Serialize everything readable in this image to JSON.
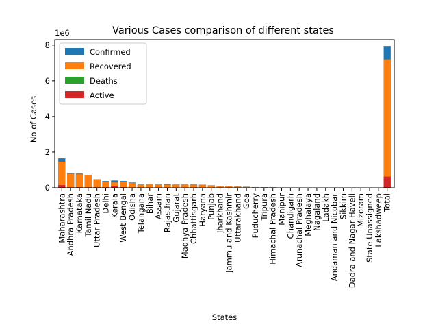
{
  "chart_data": {
    "type": "bar",
    "stacked_overlay": true,
    "title": "Various Cases comparison of different states",
    "xlabel": "States",
    "ylabel": "No of Cases",
    "y_multiplier_label": "1e6",
    "y_multiplier": 1000000,
    "ylim": [
      0,
      8300000
    ],
    "yticks": [
      0,
      2000000,
      4000000,
      6000000,
      8000000
    ],
    "ytick_labels": [
      "0",
      "2",
      "4",
      "6",
      "8"
    ],
    "legend_position": "top-left",
    "categories": [
      "Maharashtra",
      "Andhra Pradesh",
      "Karnataka",
      "Tamil Nadu",
      "Uttar Pradesh",
      "Delhi",
      "Kerala",
      "West Bengal",
      "Odisha",
      "Telangana",
      "Bihar",
      "Assam",
      "Rajasthan",
      "Gujarat",
      "Madhya Pradesh",
      "Chhattisgarh",
      "Haryana",
      "Punjab",
      "Jharkhand",
      "Jammu and Kashmir",
      "Uttarakhand",
      "Goa",
      "Puducherry",
      "Tripura",
      "Himachal Pradesh",
      "Manipur",
      "Chandigarh",
      "Arunachal Pradesh",
      "Meghalaya",
      "Nagaland",
      "Ladakh",
      "Andaman and Nicobar",
      "Sikkim",
      "Dadra and Nagar Haveli",
      "Mizoram",
      "State Unassigned",
      "Lakshadweep",
      "Total"
    ],
    "series": [
      {
        "name": " Confirmed",
        "color": "#1f77b4",
        "values": [
          1650000,
          820000,
          800000,
          730000,
          480000,
          380000,
          410000,
          380000,
          300000,
          230000,
          220000,
          220000,
          200000,
          180000,
          180000,
          180000,
          170000,
          140000,
          110000,
          100000,
          70000,
          60000,
          40000,
          35000,
          30000,
          20000,
          16000,
          15000,
          10000,
          10000,
          6000,
          5000,
          4000,
          3000,
          2500,
          0,
          0,
          7950000
        ]
      },
      {
        "name": "Recovered",
        "color": "#ff7f0e",
        "values": [
          1460000,
          790000,
          760000,
          700000,
          470000,
          350000,
          300000,
          340000,
          280000,
          200000,
          210000,
          200000,
          170000,
          160000,
          160000,
          150000,
          150000,
          130000,
          100000,
          85000,
          65000,
          50000,
          35000,
          30000,
          25000,
          15000,
          13000,
          12000,
          8000,
          7000,
          5000,
          4500,
          3000,
          2800,
          2000,
          0,
          0,
          7200000
        ]
      },
      {
        "name": "Deaths",
        "color": "#2ca02c",
        "values": [
          43000,
          6500,
          10800,
          11100,
          6900,
          6200,
          1400,
          6600,
          1300,
          1300,
          1000,
          900,
          1900,
          3600,
          2900,
          1700,
          1700,
          4100,
          900,
          1600,
          1100,
          600,
          600,
          400,
          300,
          200,
          200,
          50,
          90,
          50,
          60,
          60,
          80,
          2,
          0,
          0,
          0,
          121000
        ]
      },
      {
        "name": "Active",
        "color": "#d62728",
        "values": [
          150000,
          30000,
          35000,
          30000,
          30000,
          30000,
          100000,
          35000,
          20000,
          25000,
          10000,
          20000,
          20000,
          15000,
          15000,
          25000,
          15000,
          5000,
          10000,
          15000,
          5000,
          10000,
          4000,
          3000,
          4000,
          4000,
          3000,
          2000,
          2000,
          2000,
          1000,
          500,
          700,
          200,
          500,
          0,
          0,
          630000
        ]
      }
    ]
  }
}
